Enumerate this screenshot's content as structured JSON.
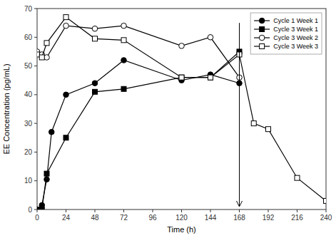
{
  "chart_data": {
    "type": "line",
    "xlabel": "Time (h)",
    "ylabel": "EE Concentration (pg/mL)",
    "xlim": [
      0,
      240
    ],
    "ylim": [
      0,
      70
    ],
    "xticks": [
      0,
      24,
      48,
      72,
      96,
      120,
      144,
      168,
      192,
      216,
      240
    ],
    "yticks": [
      0,
      10,
      20,
      30,
      40,
      50,
      60,
      70
    ],
    "grid": false,
    "legend": "upper right",
    "series": [
      {
        "name": "Cycle 1 Week 1",
        "color": "#000000",
        "marker": "filled-circle",
        "x": [
          0,
          4,
          8,
          12,
          24,
          48,
          72,
          120,
          144,
          168
        ],
        "values": [
          0,
          1.5,
          10.5,
          27,
          40,
          44,
          52,
          45,
          47,
          44
        ]
      },
      {
        "name": "Cycle 3 Week 1",
        "color": "#000000",
        "marker": "filled-square",
        "x": [
          0,
          4,
          8,
          24,
          48,
          72,
          120,
          144,
          168
        ],
        "values": [
          0,
          0,
          12.5,
          25,
          41,
          42,
          46,
          46,
          55
        ]
      },
      {
        "name": "Cycle 3 Week 2",
        "color": "#000000",
        "marker": "open-circle",
        "x": [
          0,
          4,
          8,
          24,
          48,
          72,
          120,
          144,
          168
        ],
        "values": [
          55,
          54,
          53,
          64,
          63,
          64,
          57,
          60,
          46
        ]
      },
      {
        "name": "Cycle 3 Week 3",
        "color": "#000000",
        "marker": "open-square",
        "x": [
          0,
          4,
          8,
          24,
          48,
          72,
          120,
          144,
          168,
          180,
          192,
          216,
          240
        ],
        "values": [
          54,
          53,
          58,
          67,
          59.5,
          59,
          46,
          46,
          54,
          30,
          28,
          11,
          3
        ]
      }
    ],
    "annotations": [
      {
        "x": 168,
        "y_from": 65,
        "y_to": 1
      }
    ]
  }
}
